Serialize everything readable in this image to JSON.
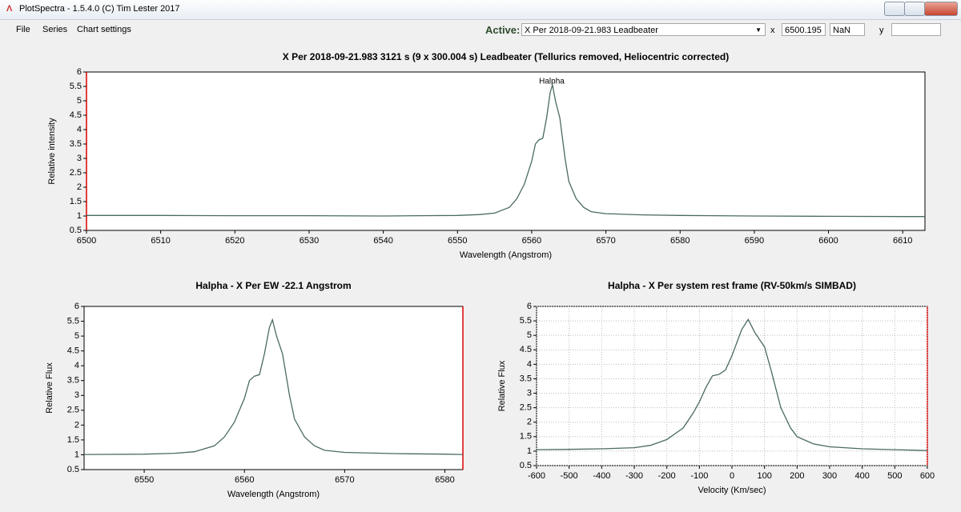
{
  "window": {
    "title": "PlotSpectra - 1.5.4.0 (C) Tim Lester 2017"
  },
  "menu": [
    "File",
    "Series",
    "Chart settings"
  ],
  "toolbar": {
    "active_label": "Active:",
    "active_value": "X Per 2018-09-21.983 Leadbeater",
    "x_label": "x",
    "x_value": "6500.195",
    "x_extra": "NaN",
    "y_label": "y"
  },
  "chart_data": [
    {
      "type": "line",
      "title": "X Per  2018-09-21.983  3121 s (9 x 300.004 s)  Leadbeater  (Tellurics removed, Heliocentric corrected)",
      "x_label": "Wavelength (Angstrom)",
      "y_label": "Relative intensity",
      "annotation": "Halpha",
      "color": "#4a6a64",
      "grid": false,
      "x": [
        6500,
        6510,
        6520,
        6530,
        6540,
        6545,
        6550,
        6553,
        6555,
        6557,
        6558,
        6559,
        6560,
        6560.5,
        6561,
        6561.5,
        6562,
        6562.5,
        6562.8,
        6563.2,
        6563.8,
        6564.5,
        6565,
        6566,
        6567,
        6568,
        6570,
        6575,
        6580,
        6590,
        6600,
        6610,
        6613
      ],
      "values": [
        1.02,
        1.02,
        1.01,
        1.01,
        1.0,
        1.01,
        1.02,
        1.05,
        1.1,
        1.3,
        1.6,
        2.1,
        2.9,
        3.5,
        3.65,
        3.7,
        4.4,
        5.3,
        5.55,
        5.0,
        4.4,
        3.0,
        2.2,
        1.6,
        1.3,
        1.15,
        1.08,
        1.04,
        1.02,
        1.0,
        0.99,
        0.98,
        0.98
      ],
      "xlim": [
        6500,
        6613
      ],
      "xticks": [
        6500,
        6510,
        6520,
        6530,
        6540,
        6550,
        6560,
        6570,
        6580,
        6590,
        6600,
        6610
      ],
      "ylim": [
        0.5,
        6
      ],
      "yticks": [
        0.5,
        1,
        1.5,
        2,
        2.5,
        3,
        3.5,
        4,
        4.5,
        5,
        5.5,
        6
      ]
    },
    {
      "type": "line",
      "title": "Halpha  - X Per    EW  -22.1 Angstrom",
      "x_label": "Wavelength (Angstrom)",
      "y_label": "Relative Flux",
      "color": "#4a6a64",
      "grid": false,
      "x": [
        6544,
        6550,
        6553,
        6555,
        6557,
        6558,
        6559,
        6560,
        6560.5,
        6561,
        6561.5,
        6562,
        6562.5,
        6562.8,
        6563.2,
        6563.8,
        6564.5,
        6565,
        6566,
        6567,
        6568,
        6570,
        6575,
        6580,
        6581.8
      ],
      "values": [
        1.01,
        1.02,
        1.05,
        1.1,
        1.3,
        1.6,
        2.1,
        2.9,
        3.5,
        3.65,
        3.7,
        4.4,
        5.3,
        5.55,
        5.0,
        4.4,
        3.0,
        2.2,
        1.6,
        1.3,
        1.15,
        1.08,
        1.04,
        1.02,
        1.01
      ],
      "xlim": [
        6544,
        6581.8
      ],
      "xticks": [
        6550,
        6560,
        6570,
        6580
      ],
      "ylim": [
        0.5,
        6
      ],
      "yticks": [
        0.5,
        1,
        1.5,
        2,
        2.5,
        3,
        3.5,
        4,
        4.5,
        5,
        5.5,
        6
      ]
    },
    {
      "type": "line",
      "title": "Halpha  - X Per system rest frame (RV-50km/s SIMBAD)",
      "x_label": "Velocity (Km/sec)",
      "y_label": "Relative Flux",
      "color": "#4a6a64",
      "grid": true,
      "x": [
        -600,
        -500,
        -400,
        -300,
        -250,
        -200,
        -150,
        -120,
        -100,
        -80,
        -60,
        -40,
        -20,
        0,
        30,
        50,
        70,
        100,
        120,
        150,
        180,
        200,
        250,
        300,
        400,
        500,
        600
      ],
      "values": [
        1.05,
        1.06,
        1.08,
        1.12,
        1.2,
        1.4,
        1.8,
        2.3,
        2.7,
        3.2,
        3.6,
        3.65,
        3.8,
        4.3,
        5.2,
        5.55,
        5.1,
        4.6,
        3.8,
        2.5,
        1.8,
        1.5,
        1.25,
        1.15,
        1.08,
        1.05,
        1.02
      ],
      "xlim": [
        -600,
        600
      ],
      "xticks": [
        -600,
        -500,
        -400,
        -300,
        -200,
        -100,
        0,
        100,
        200,
        300,
        400,
        500,
        600
      ],
      "ylim": [
        0.5,
        6
      ],
      "yticks": [
        0.5,
        1,
        1.5,
        2,
        2.5,
        3,
        3.5,
        4,
        4.5,
        5,
        5.5,
        6
      ]
    }
  ]
}
